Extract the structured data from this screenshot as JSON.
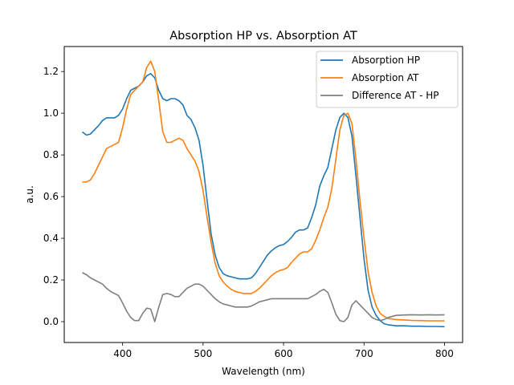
{
  "chart_data": {
    "type": "line",
    "title": "Absorption HP vs. Absorption AT",
    "xlabel": "Wavelength (nm)",
    "ylabel": "a.u.",
    "xlim": [
      327.5,
      822.5
    ],
    "ylim": [
      -0.1,
      1.32
    ],
    "xticks": [
      400,
      500,
      600,
      700,
      800
    ],
    "yticks": [
      0.0,
      0.2,
      0.4,
      0.6,
      0.8,
      1.0,
      1.2
    ],
    "grid": false,
    "legend_position": "top-right",
    "series": [
      {
        "name": "Absorption HP",
        "color": "#1f77b4",
        "x": [
          350,
          355,
          360,
          365,
          370,
          375,
          380,
          385,
          390,
          395,
          400,
          405,
          410,
          415,
          420,
          425,
          430,
          435,
          440,
          445,
          450,
          455,
          460,
          465,
          470,
          475,
          480,
          485,
          490,
          495,
          500,
          505,
          510,
          515,
          520,
          525,
          530,
          535,
          540,
          545,
          550,
          555,
          560,
          565,
          570,
          575,
          580,
          585,
          590,
          595,
          600,
          605,
          610,
          615,
          620,
          625,
          630,
          635,
          640,
          645,
          650,
          655,
          660,
          665,
          670,
          675,
          680,
          685,
          690,
          695,
          700,
          705,
          710,
          715,
          720,
          725,
          730,
          740,
          750,
          760,
          770,
          780,
          790,
          800
        ],
        "y": [
          0.91,
          0.895,
          0.9,
          0.92,
          0.94,
          0.965,
          0.978,
          0.978,
          0.978,
          0.99,
          1.02,
          1.07,
          1.11,
          1.12,
          1.13,
          1.15,
          1.18,
          1.19,
          1.17,
          1.11,
          1.07,
          1.06,
          1.07,
          1.07,
          1.06,
          1.04,
          0.99,
          0.97,
          0.93,
          0.87,
          0.75,
          0.58,
          0.42,
          0.32,
          0.26,
          0.23,
          0.22,
          0.215,
          0.21,
          0.205,
          0.205,
          0.205,
          0.21,
          0.23,
          0.26,
          0.29,
          0.32,
          0.34,
          0.355,
          0.365,
          0.37,
          0.385,
          0.405,
          0.43,
          0.44,
          0.44,
          0.45,
          0.5,
          0.56,
          0.65,
          0.7,
          0.74,
          0.83,
          0.92,
          0.98,
          1.0,
          0.98,
          0.89,
          0.7,
          0.5,
          0.3,
          0.15,
          0.07,
          0.03,
          0.005,
          -0.01,
          -0.015,
          -0.02,
          -0.02,
          -0.022,
          -0.022,
          -0.023,
          -0.023,
          -0.024
        ]
      },
      {
        "name": "Absorption AT",
        "color": "#ff7f0e",
        "x": [
          350,
          355,
          360,
          365,
          370,
          375,
          380,
          385,
          390,
          395,
          400,
          405,
          410,
          415,
          420,
          425,
          430,
          435,
          440,
          445,
          450,
          455,
          460,
          465,
          470,
          475,
          480,
          485,
          490,
          495,
          500,
          505,
          510,
          515,
          520,
          525,
          530,
          535,
          540,
          545,
          550,
          555,
          560,
          565,
          570,
          575,
          580,
          585,
          590,
          595,
          600,
          605,
          610,
          615,
          620,
          625,
          630,
          635,
          640,
          645,
          650,
          655,
          660,
          665,
          670,
          675,
          680,
          685,
          690,
          695,
          700,
          705,
          710,
          715,
          720,
          725,
          730,
          740,
          750,
          760,
          770,
          780,
          790,
          800
        ],
        "y": [
          0.67,
          0.67,
          0.68,
          0.71,
          0.75,
          0.79,
          0.83,
          0.84,
          0.85,
          0.86,
          0.93,
          1.02,
          1.09,
          1.11,
          1.13,
          1.15,
          1.22,
          1.25,
          1.2,
          1.06,
          0.91,
          0.86,
          0.86,
          0.87,
          0.88,
          0.87,
          0.83,
          0.8,
          0.77,
          0.72,
          0.63,
          0.5,
          0.38,
          0.28,
          0.22,
          0.19,
          0.17,
          0.155,
          0.145,
          0.14,
          0.135,
          0.135,
          0.135,
          0.145,
          0.16,
          0.18,
          0.2,
          0.22,
          0.235,
          0.245,
          0.25,
          0.26,
          0.285,
          0.305,
          0.325,
          0.335,
          0.335,
          0.35,
          0.39,
          0.44,
          0.5,
          0.55,
          0.64,
          0.78,
          0.92,
          0.99,
          1.0,
          0.95,
          0.78,
          0.58,
          0.4,
          0.24,
          0.14,
          0.075,
          0.04,
          0.025,
          0.015,
          0.01,
          0.008,
          0.006,
          0.005,
          0.004,
          0.004,
          0.004
        ]
      },
      {
        "name": "Difference AT - HP",
        "color": "#7f7f7f",
        "x": [
          350,
          355,
          360,
          365,
          370,
          375,
          380,
          385,
          390,
          395,
          400,
          405,
          410,
          415,
          420,
          425,
          430,
          435,
          440,
          445,
          450,
          455,
          460,
          465,
          470,
          475,
          480,
          485,
          490,
          495,
          500,
          505,
          510,
          515,
          520,
          525,
          530,
          535,
          540,
          545,
          550,
          555,
          560,
          565,
          570,
          575,
          580,
          585,
          590,
          595,
          600,
          605,
          610,
          615,
          620,
          625,
          630,
          635,
          640,
          645,
          650,
          655,
          660,
          665,
          670,
          675,
          680,
          685,
          690,
          695,
          700,
          705,
          710,
          715,
          720,
          725,
          730,
          740,
          750,
          760,
          770,
          780,
          790,
          800
        ],
        "y": [
          0.235,
          0.225,
          0.21,
          0.2,
          0.19,
          0.18,
          0.16,
          0.145,
          0.135,
          0.125,
          0.09,
          0.05,
          0.02,
          0.005,
          0.005,
          0.04,
          0.065,
          0.06,
          0.0,
          0.07,
          0.13,
          0.135,
          0.13,
          0.12,
          0.12,
          0.14,
          0.16,
          0.17,
          0.18,
          0.18,
          0.17,
          0.15,
          0.13,
          0.11,
          0.095,
          0.085,
          0.08,
          0.075,
          0.07,
          0.07,
          0.07,
          0.07,
          0.075,
          0.085,
          0.095,
          0.1,
          0.105,
          0.11,
          0.11,
          0.11,
          0.11,
          0.11,
          0.11,
          0.11,
          0.11,
          0.11,
          0.11,
          0.12,
          0.13,
          0.145,
          0.155,
          0.14,
          0.09,
          0.035,
          0.005,
          0.0,
          0.02,
          0.08,
          0.1,
          0.08,
          0.06,
          0.04,
          0.02,
          0.01,
          0.005,
          0.01,
          0.02,
          0.03,
          0.032,
          0.033,
          0.032,
          0.033,
          0.032,
          0.033
        ]
      }
    ]
  }
}
